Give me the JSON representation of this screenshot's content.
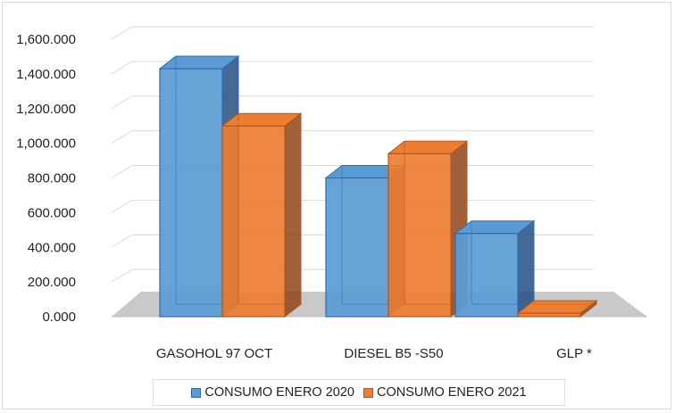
{
  "chart_data": {
    "type": "bar",
    "categories": [
      "GASOHOL 97 OCT",
      "DIESEL B5 -S50",
      "GLP *"
    ],
    "series": [
      {
        "name": "CONSUMO ENERO 2020",
        "values": [
          1430.0,
          800.0,
          480.0
        ],
        "color": "#5b9bd5",
        "edge": "#2e6bb0",
        "dark": "#234f82"
      },
      {
        "name": "CONSUMO ENERO 2021",
        "values": [
          1100.0,
          940.0,
          20.0
        ],
        "color": "#ed7d31",
        "edge": "#b4581c",
        "dark": "#8f4417"
      }
    ],
    "y_ticks": [
      "0.000",
      "200.000",
      "400.000",
      "600.000",
      "800.000",
      "1,000.000",
      "1,200.000",
      "1,400.000",
      "1,600.000"
    ],
    "ylim": [
      0,
      1600
    ],
    "title": "",
    "xlabel": "",
    "ylabel": "",
    "grid": true,
    "legend_position": "bottom",
    "style": "3d-clustered-column"
  }
}
